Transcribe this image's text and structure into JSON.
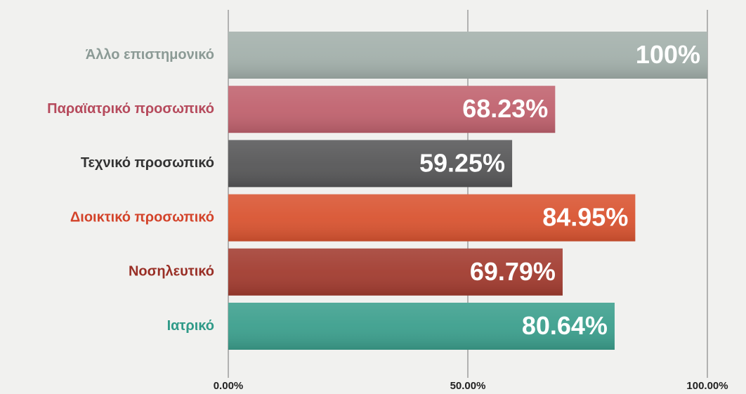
{
  "chart_data": {
    "type": "bar",
    "orientation": "horizontal",
    "categories": [
      "Άλλο επιστημονικό",
      "Παραϊατρικό προσωπικό",
      "Τεχνικό προσωπικό",
      "Διοικτικό προσωπικό",
      "Νοσηλευτικό",
      "Ιατρικό"
    ],
    "values": [
      100,
      68.23,
      59.25,
      84.95,
      69.79,
      80.64
    ],
    "value_labels": [
      "100%",
      "68.23%",
      "59.25%",
      "84.95%",
      "69.79%",
      "80.64%"
    ],
    "colors": [
      "#a3b0ab",
      "#c0626e",
      "#575758",
      "#d95431",
      "#a23c30",
      "#3c9f8d"
    ],
    "label_colors": [
      "#8b9a95",
      "#b64a5c",
      "#333333",
      "#d3432a",
      "#992f26",
      "#2f9a88"
    ],
    "xlim": [
      0,
      100
    ],
    "xticks": [
      {
        "value": 0,
        "label": "0.00%"
      },
      {
        "value": 50,
        "label": "50.00%"
      },
      {
        "value": 100,
        "label": "100.00%"
      }
    ],
    "grid": true
  }
}
